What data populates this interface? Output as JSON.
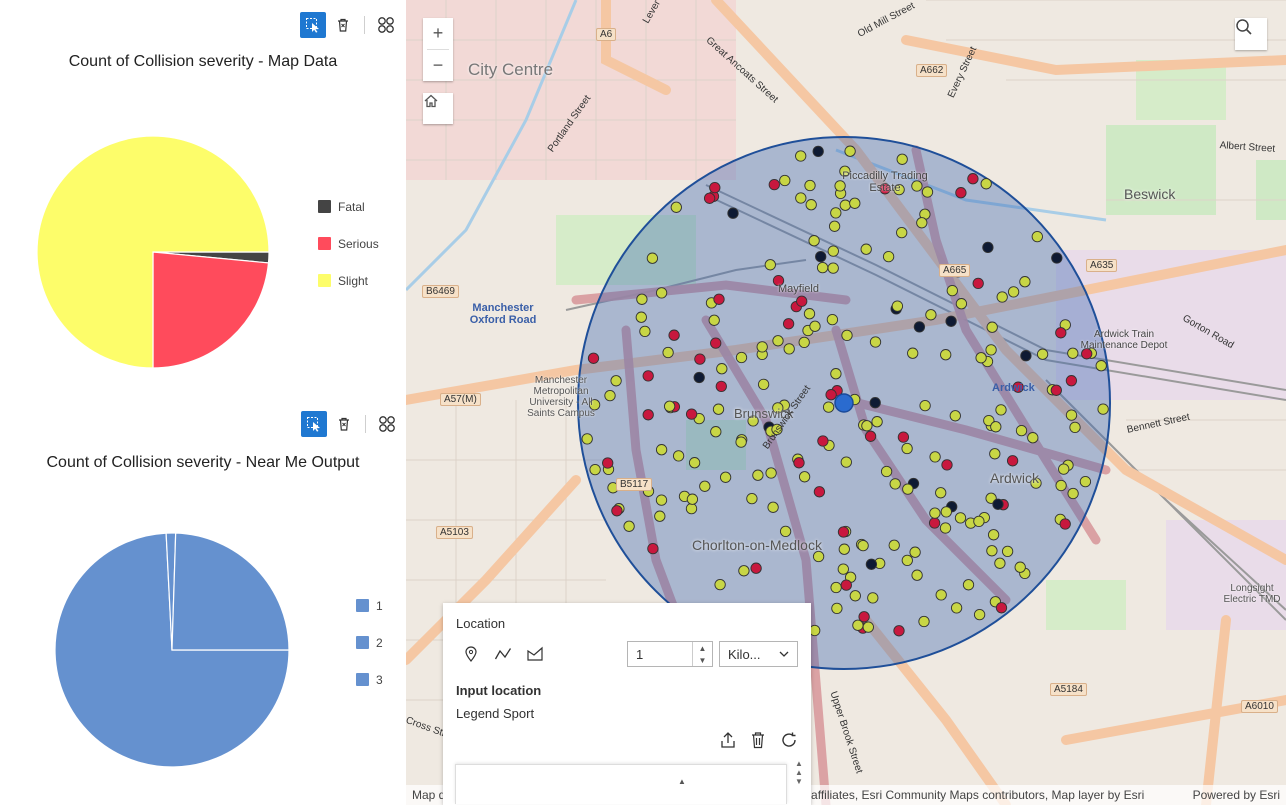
{
  "charts": [
    {
      "title": "Count of Collision severity - Map Data",
      "legend": [
        {
          "label": "Fatal",
          "color": "#444444"
        },
        {
          "label": "Serious",
          "color": "#ff4b5c"
        },
        {
          "label": "Slight",
          "color": "#fdfd6a"
        }
      ]
    },
    {
      "title": "Count of Collision severity - Near Me Output",
      "legend": [
        {
          "label": "1",
          "color": "#6591cf"
        },
        {
          "label": "2",
          "color": "#6591cf"
        },
        {
          "label": "3",
          "color": "#6591cf"
        }
      ]
    }
  ],
  "chart_data": [
    {
      "type": "pie",
      "title": "Count of Collision severity - Map Data",
      "categories": [
        "Fatal",
        "Serious",
        "Slight"
      ],
      "values": [
        1.5,
        23.5,
        75
      ],
      "colors": [
        "#444444",
        "#ff4b5c",
        "#fdfd6a"
      ],
      "legend": "right"
    },
    {
      "type": "pie",
      "title": "Count of Collision severity - Near Me Output",
      "categories": [
        "1",
        "2",
        "3"
      ],
      "values": [
        74.2,
        1.3,
        24.5
      ],
      "colors": [
        "#6591cf",
        "#6591cf",
        "#6591cf"
      ],
      "legend": "right"
    }
  ],
  "toolbar_icons": [
    "select-filter-icon",
    "trash-icon",
    "grid-icon"
  ],
  "map": {
    "zoom_in": "+",
    "zoom_out": "−",
    "labels": [
      {
        "text": "City Centre",
        "kind": "area"
      },
      {
        "text": "Beswick",
        "kind": "area"
      },
      {
        "text": "Ardwick",
        "kind": "area"
      },
      {
        "text": "Ardwick",
        "kind": "blue"
      },
      {
        "text": "Brunswick",
        "kind": "area"
      },
      {
        "text": "Chorlton-on-Medlock",
        "kind": "area"
      },
      {
        "text": "Mayfield",
        "kind": "small"
      },
      {
        "text": "Piccadilly Trading Estate",
        "kind": "small"
      },
      {
        "text": "Manchester Oxford Road",
        "kind": "blue"
      },
      {
        "text": "Manchester Metropolitan University - All Saints Campus",
        "kind": "small"
      },
      {
        "text": "Ardwick Train Maintenance Depot",
        "kind": "small"
      },
      {
        "text": "Longsight Electric TMD",
        "kind": "small"
      },
      {
        "text": "A6",
        "kind": "road"
      },
      {
        "text": "A662",
        "kind": "road"
      },
      {
        "text": "A665",
        "kind": "road"
      },
      {
        "text": "A635",
        "kind": "road"
      },
      {
        "text": "A57(M)",
        "kind": "road"
      },
      {
        "text": "B6469",
        "kind": "road"
      },
      {
        "text": "B5117",
        "kind": "road"
      },
      {
        "text": "A5103",
        "kind": "road"
      },
      {
        "text": "A5184",
        "kind": "road"
      },
      {
        "text": "A6010",
        "kind": "road"
      },
      {
        "text": "Great Ancoats Street",
        "kind": "street"
      },
      {
        "text": "Portland Street",
        "kind": "street"
      },
      {
        "text": "Upper Brook Street",
        "kind": "street"
      },
      {
        "text": "Gorton Road",
        "kind": "street"
      },
      {
        "text": "Albert Street",
        "kind": "street"
      },
      {
        "text": "Bennett Street",
        "kind": "street"
      },
      {
        "text": "Old Mill Street",
        "kind": "street"
      },
      {
        "text": "Every Street",
        "kind": "street"
      },
      {
        "text": "Lever Street",
        "kind": "street"
      },
      {
        "text": "Brunswick Street",
        "kind": "street"
      },
      {
        "text": "Cross Street",
        "kind": "street"
      }
    ],
    "attribution": "Map data © OpenStreetMap contributors, Microsoft, Facebook, Inc. and its affiliates, Esri Community Maps contributors, Map layer by Esri",
    "powered_by": "Powered by Esri"
  },
  "widget": {
    "location_label": "Location",
    "distance_value": "1",
    "unit_value": "Kilo...",
    "input_location_label": "Input location",
    "legend_label": "Legend Sport"
  }
}
